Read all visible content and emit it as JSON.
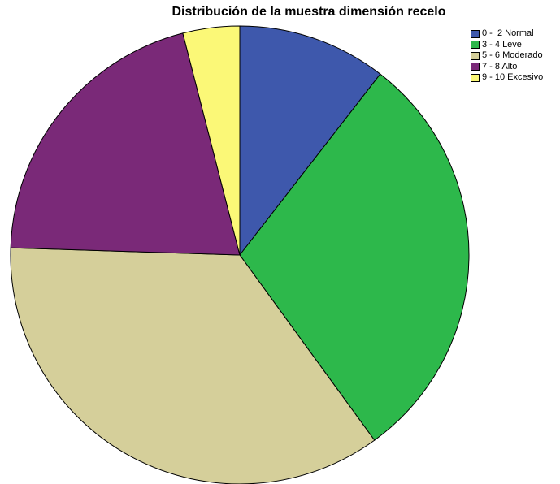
{
  "chart_data": {
    "type": "pie",
    "title": "Distribución de la muestra dimensión recelo",
    "legend_position": "top-right",
    "categories": [
      "0 -  2 Normal",
      "3 - 4 Leve",
      "5 - 6 Moderado",
      "7 - 8 Alto",
      "9 - 10 Excesivo"
    ],
    "values": [
      10.5,
      29.5,
      35.5,
      20.5,
      4.0
    ],
    "colors": [
      "#3e58ac",
      "#2db84b",
      "#d5cf9a",
      "#7a2978",
      "#fbf877"
    ]
  }
}
